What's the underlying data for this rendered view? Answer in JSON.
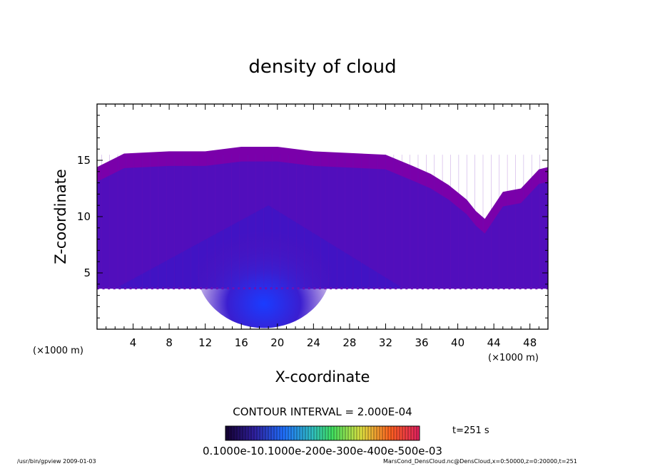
{
  "chart_data": {
    "type": "heatmap",
    "title": "density of cloud",
    "xlabel": "X-coordinate",
    "ylabel": "Z-coordinate",
    "x_unit_left": "(×1000 m)",
    "x_unit_right": "(×1000 m)",
    "xlim": [
      0,
      50
    ],
    "ylim": [
      0,
      20
    ],
    "x_ticks": [
      "4",
      "8",
      "12",
      "16",
      "20",
      "24",
      "28",
      "32",
      "36",
      "40",
      "44",
      "48"
    ],
    "y_ticks": [
      "5",
      "10",
      "15"
    ],
    "cloud_top_km": [
      [
        0,
        14.4
      ],
      [
        2,
        15.2
      ],
      [
        3,
        15.6
      ],
      [
        8,
        15.8
      ],
      [
        12,
        15.8
      ],
      [
        16,
        16.2
      ],
      [
        20,
        16.2
      ],
      [
        24,
        15.8
      ],
      [
        32,
        15.5
      ],
      [
        35,
        14.5
      ],
      [
        37,
        13.8
      ],
      [
        39,
        12.8
      ],
      [
        41,
        11.5
      ],
      [
        42,
        10.5
      ],
      [
        43,
        9.8
      ],
      [
        44,
        11.0
      ],
      [
        45,
        12.2
      ],
      [
        47,
        12.5
      ],
      [
        49,
        14.2
      ],
      [
        50,
        14.4
      ]
    ],
    "cloud_base_km": 3.6,
    "colors": {
      "outer": "#7a00aa",
      "inner": "#4a10c0",
      "core": "#1a3cff"
    },
    "contour_interval_label": "CONTOUR INTERVAL = 2.000E-04",
    "time_label": "t=251 s",
    "colorbar_label": "0.1000e-10.1000e-200e-300e-400e-500e-03",
    "footer_left": "/usr/bin/gpview   2009-01-03",
    "footer_right": "MarsCond_DensCloud.nc@DensCloud,x=0:50000,z=0:20000,t=251"
  }
}
